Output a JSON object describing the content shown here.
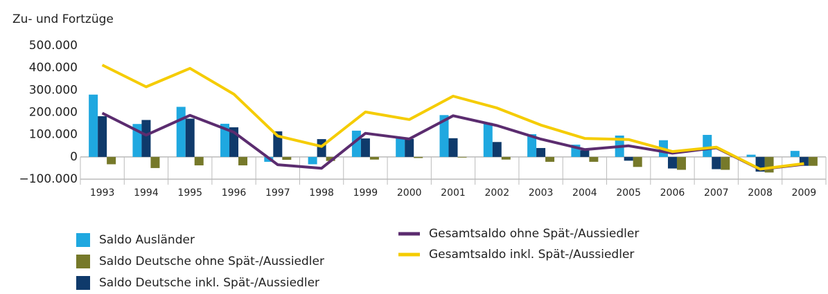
{
  "chart_data": {
    "type": "bar",
    "title": "Zu- und Fortzüge",
    "categories": [
      "1993",
      "1994",
      "1995",
      "1996",
      "1997",
      "1998",
      "1999",
      "2000",
      "2001",
      "2002",
      "2003",
      "2004",
      "2005",
      "2006",
      "2007",
      "2008",
      "2009"
    ],
    "series": [
      {
        "name": "Saldo Ausländer",
        "type": "bar",
        "color": "#1fa8e0",
        "values": [
          280000,
          148000,
          225000,
          149000,
          -22000,
          -33000,
          118000,
          86000,
          188000,
          153000,
          102000,
          55000,
          96000,
          75000,
          99000,
          10000,
          27000
        ]
      },
      {
        "name": "Saldo Deutsche ohne Spät-/Aussiedler",
        "type": "bar",
        "color": "#76792a",
        "values": [
          -33000,
          -50000,
          -38000,
          -38000,
          -13000,
          -18000,
          -12000,
          -5000,
          -3000,
          -12000,
          -22000,
          -22000,
          -45000,
          -58000,
          -58000,
          -70000,
          -40000
        ]
      },
      {
        "name": "Saldo Deutsche inkl. Spät-/Aussiedler",
        "type": "bar",
        "color": "#0f3a6b",
        "values": [
          183000,
          166000,
          172000,
          133000,
          115000,
          80000,
          83000,
          81000,
          84000,
          67000,
          40000,
          30000,
          -17000,
          -52000,
          -55000,
          -66000,
          -40000
        ]
      },
      {
        "name": "Gesamtsaldo ohne Spät-/Aussiedler",
        "type": "line",
        "color": "#5b2c6f",
        "values": [
          197000,
          98000,
          187000,
          111000,
          -35000,
          -51000,
          106000,
          81000,
          185000,
          141000,
          80000,
          33000,
          50000,
          17000,
          41000,
          -56000,
          -33000
        ]
      },
      {
        "name": "Gesamtsaldo inkl. Spät-/Aussiedler",
        "type": "line",
        "color": "#f5cc00",
        "values": [
          413000,
          315000,
          398000,
          282000,
          94000,
          47000,
          202000,
          168000,
          273000,
          220000,
          143000,
          83000,
          78000,
          24000,
          44000,
          -55000,
          -30000
        ]
      }
    ],
    "ylim": [
      -100000,
      500000
    ],
    "yticks": [
      {
        "value": -100000,
        "label": "−100.000"
      },
      0,
      {
        "value": 100000,
        "label": "100.000"
      },
      {
        "value": 200000,
        "label": "200.000"
      },
      {
        "value": 300000,
        "label": "300.000"
      },
      {
        "value": 400000,
        "label": "400.000"
      },
      {
        "value": 500000,
        "label": "500.000"
      }
    ],
    "grid": false,
    "legend": "bottom"
  }
}
